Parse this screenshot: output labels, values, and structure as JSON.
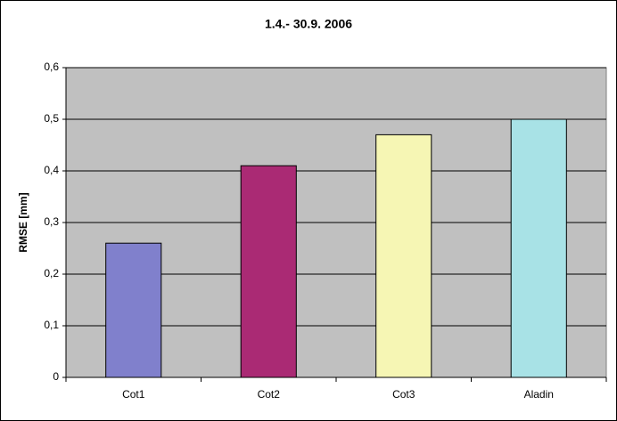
{
  "chart_data": {
    "type": "bar",
    "title": "1.4.- 30.9. 2006",
    "y_label": "RMSE [mm]",
    "categories": [
      "Cot1",
      "Cot2",
      "Cot3",
      "Aladin"
    ],
    "values": [
      0.26,
      0.41,
      0.47,
      0.5
    ],
    "colors": [
      "#8080cc",
      "#aa2a74",
      "#f6f6b4",
      "#a8e2e6"
    ],
    "ylim": [
      0,
      0.6
    ],
    "yticks": [
      0,
      {
        "value": 0.1,
        "label": "0,1"
      },
      {
        "value": 0.2,
        "label": "0,2"
      },
      {
        "value": 0.3,
        "label": "0,3"
      },
      {
        "value": 0.4,
        "label": "0,4"
      },
      {
        "value": 0.5,
        "label": "0,5"
      },
      {
        "value": 0.6,
        "label": "0,6"
      }
    ],
    "grid": true
  }
}
